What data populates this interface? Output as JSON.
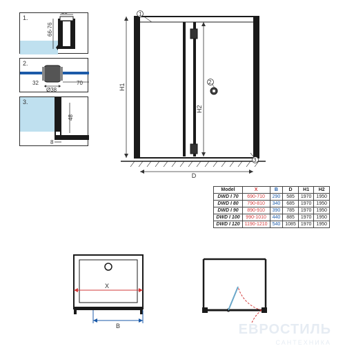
{
  "colors": {
    "glass": "#bfe0ef",
    "outline": "#1a1a1a",
    "dim_text": "#333333",
    "red": "#d23a3a",
    "blue": "#1b5aa8",
    "background": "#ffffff",
    "watermark": "#3a6aa0"
  },
  "details": {
    "d1": {
      "num": "1.",
      "width_label": "25",
      "depth_label": "66-76"
    },
    "d2": {
      "num": "2.",
      "dia_label": "Ø38",
      "offset_label": "32",
      "edge_label": "70"
    },
    "d3": {
      "num": "3.",
      "gap_label": "8",
      "height_label": "48"
    }
  },
  "main_elevation": {
    "callout_top": "1.",
    "callout_mid": "2.",
    "callout_bot": "3.",
    "label_h1": "H1",
    "label_h2": "H2",
    "label_d": "D"
  },
  "plan_left": {
    "label_x": "X",
    "label_b": "B"
  },
  "plan_right": {},
  "spec_table": {
    "headers": [
      "Model",
      "X",
      "B",
      "D",
      "H1",
      "H2"
    ],
    "header_colors": {
      "X": "#d23a3a",
      "B": "#1b5aa8"
    },
    "rows": [
      {
        "model": "DWD I 70",
        "x": "690-710",
        "b": "290",
        "d": "585",
        "h1": "1970",
        "h2": "1950"
      },
      {
        "model": "DWD I 80",
        "x": "790-810",
        "b": "340",
        "d": "685",
        "h1": "1970",
        "h2": "1950"
      },
      {
        "model": "DWD I 90",
        "x": "890-910",
        "b": "390",
        "d": "785",
        "h1": "1970",
        "h2": "1950"
      },
      {
        "model": "DWD I 100",
        "x": "990-1010",
        "b": "440",
        "d": "885",
        "h1": "1970",
        "h2": "1950"
      },
      {
        "model": "DWD I 120",
        "x": "1190-1210",
        "b": "540",
        "d": "1085",
        "h1": "1970",
        "h2": "1950"
      }
    ]
  },
  "watermark": {
    "main": "ЕВРОСТИЛЬ",
    "sub": "САНТЕХНИКА"
  }
}
